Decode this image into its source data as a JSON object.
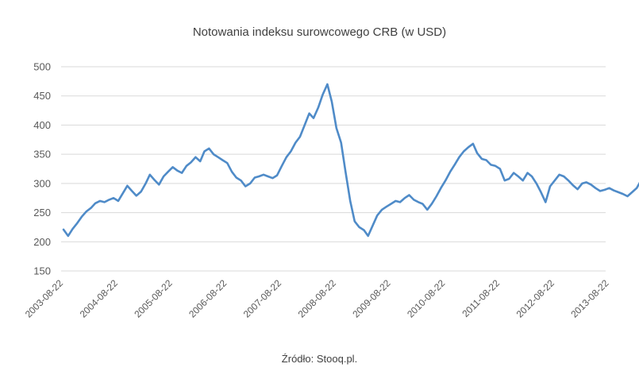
{
  "chart_data": {
    "type": "line",
    "title": "Notowania indeksu surowcowego CRB (w USD)",
    "source": "Źródło: Stooq.pl.",
    "xlabel": "",
    "ylabel": "",
    "ylim": [
      150,
      500
    ],
    "yticks": [
      150,
      200,
      250,
      300,
      350,
      400,
      450,
      500
    ],
    "xticks": [
      "2003-08-22",
      "2004-08-22",
      "2005-08-22",
      "2006-08-22",
      "2007-08-22",
      "2008-08-22",
      "2009-08-22",
      "2010-08-22",
      "2011-08-22",
      "2012-08-22",
      "2013-08-22"
    ],
    "grid": true,
    "line_color": "#4f8bc8",
    "series": [
      {
        "x": [
          "2003-08-22",
          "2003-09-22",
          "2003-10-22",
          "2003-11-22",
          "2003-12-22",
          "2004-01-22",
          "2004-02-22",
          "2004-03-22",
          "2004-04-22",
          "2004-05-22",
          "2004-06-22",
          "2004-07-22",
          "2004-08-22",
          "2004-09-22",
          "2004-10-22",
          "2004-11-22",
          "2004-12-22",
          "2005-01-22",
          "2005-02-22",
          "2005-03-22",
          "2005-04-22",
          "2005-05-22",
          "2005-06-22",
          "2005-07-22",
          "2005-08-22",
          "2005-09-22",
          "2005-10-22",
          "2005-11-22",
          "2005-12-22",
          "2006-01-22",
          "2006-02-22",
          "2006-03-22",
          "2006-04-22",
          "2006-05-22",
          "2006-06-22",
          "2006-07-22",
          "2006-08-22",
          "2006-09-22",
          "2006-10-22",
          "2006-11-22",
          "2006-12-22",
          "2007-01-22",
          "2007-02-22",
          "2007-03-22",
          "2007-04-22",
          "2007-05-22",
          "2007-06-22",
          "2007-07-22",
          "2007-08-22",
          "2007-09-22",
          "2007-10-22",
          "2007-11-22",
          "2007-12-22",
          "2008-01-22",
          "2008-02-22",
          "2008-03-22",
          "2008-04-22",
          "2008-05-22",
          "2008-06-22",
          "2008-07-22",
          "2008-08-22",
          "2008-09-22",
          "2008-10-22",
          "2008-11-22",
          "2008-12-22",
          "2009-01-22",
          "2009-02-22",
          "2009-03-22",
          "2009-04-22",
          "2009-05-22",
          "2009-06-22",
          "2009-07-22",
          "2009-08-22",
          "2009-09-22",
          "2009-10-22",
          "2009-11-22",
          "2009-12-22",
          "2010-01-22",
          "2010-02-22",
          "2010-03-22",
          "2010-04-22",
          "2010-05-22",
          "2010-06-22",
          "2010-07-22",
          "2010-08-22",
          "2010-09-22",
          "2010-10-22",
          "2010-11-22",
          "2010-12-22",
          "2011-01-22",
          "2011-02-22",
          "2011-03-22",
          "2011-04-22",
          "2011-05-22",
          "2011-06-22",
          "2011-07-22",
          "2011-08-22",
          "2011-09-22",
          "2011-10-22",
          "2011-11-22",
          "2011-12-22",
          "2012-01-22",
          "2012-02-22",
          "2012-03-22",
          "2012-04-22",
          "2012-05-22",
          "2012-06-22",
          "2012-07-22",
          "2012-08-22",
          "2012-09-22",
          "2012-10-22",
          "2012-11-22",
          "2012-12-22",
          "2013-01-22",
          "2013-02-22",
          "2013-03-22",
          "2013-04-22",
          "2013-05-22",
          "2013-06-22",
          "2013-07-22",
          "2013-08-22",
          "2013-09-22",
          "2013-10-22",
          "2013-11-22",
          "2013-12-22",
          "2014-01-22",
          "2014-02-22",
          "2014-03-22",
          "2014-04-22",
          "2014-05-22",
          "2014-06-22"
        ],
        "values": [
          221,
          210,
          222,
          232,
          243,
          252,
          258,
          266,
          270,
          268,
          272,
          275,
          270,
          283,
          296,
          287,
          279,
          286,
          300,
          315,
          306,
          298,
          312,
          320,
          328,
          322,
          318,
          330,
          336,
          345,
          338,
          355,
          360,
          350,
          345,
          340,
          335,
          320,
          310,
          305,
          295,
          300,
          310,
          312,
          315,
          312,
          309,
          314,
          330,
          345,
          355,
          370,
          380,
          400,
          420,
          412,
          430,
          452,
          470,
          440,
          395,
          370,
          320,
          270,
          235,
          225,
          220,
          210,
          228,
          245,
          255,
          260,
          265,
          270,
          268,
          275,
          280,
          272,
          268,
          265,
          255,
          265,
          278,
          292,
          305,
          320,
          332,
          345,
          355,
          362,
          368,
          352,
          342,
          340,
          332,
          330,
          325,
          305,
          308,
          318,
          312,
          305,
          318,
          312,
          300,
          285,
          268,
          295,
          305,
          315,
          312,
          305,
          297,
          290,
          300,
          302,
          298,
          292,
          287,
          289,
          292,
          288,
          285,
          282,
          278,
          285,
          292,
          305,
          302,
          310,
          306
        ]
      }
    ]
  }
}
